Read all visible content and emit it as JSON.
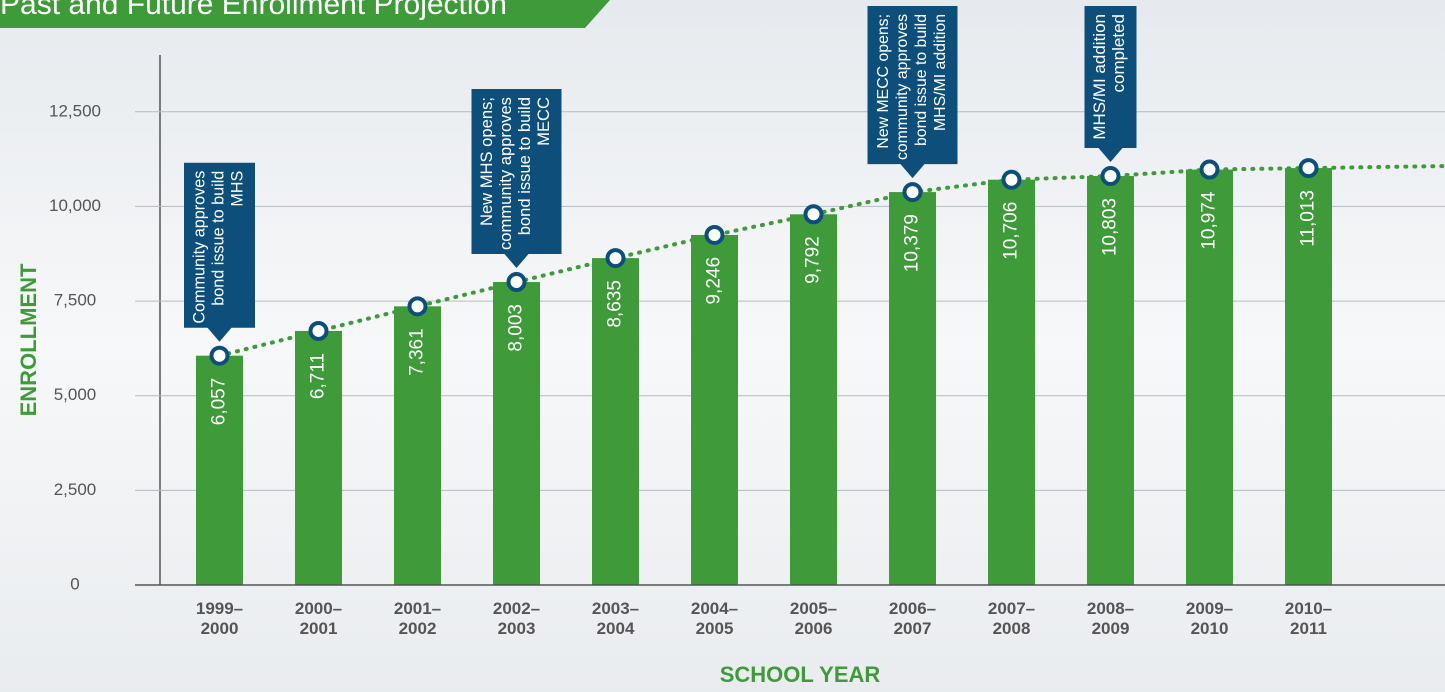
{
  "chart_data": {
    "type": "bar",
    "title": "Past and Future Enrollment Projection",
    "x_label": "SCHOOL YEAR",
    "y_label": "ENROLLMENT",
    "categories": [
      "1999–2000",
      "2000–2001",
      "2001–2002",
      "2002–2003",
      "2003–2004",
      "2004–2005",
      "2005–2006",
      "2006–2007",
      "2007–2008",
      "2008–2009",
      "2009–2010",
      "2010–2011"
    ],
    "values": [
      6057,
      6711,
      7361,
      8003,
      8635,
      9246,
      9792,
      10379,
      10706,
      10803,
      10974,
      11013
    ],
    "value_labels": [
      "6,057",
      "6,711",
      "7,361",
      "8,003",
      "8,635",
      "9,246",
      "9,792",
      "10,379",
      "10,706",
      "10,803",
      "10,974",
      "11,013"
    ],
    "color": "#3f9a3a",
    "ylim": [
      0,
      14000
    ],
    "yticks": [
      0,
      {
        "value": 2500,
        "label": "2,500"
      },
      {
        "value": 5000,
        "label": "5,000"
      },
      {
        "value": 7500,
        "label": "7,500"
      },
      {
        "value": 10000,
        "label": "10,000"
      },
      {
        "value": 12500,
        "label": "12,500"
      }
    ],
    "grid": true,
    "annotations": [
      {
        "category": "1999–2000",
        "text": "Community approves bond issue to build MHS"
      },
      {
        "category": "2002–2003",
        "text": "New MHS opens; community approves bond issue to build MECC"
      },
      {
        "category": "2006–2007",
        "text": "New MECC opens; community approves bond issue to build MHS/MI addition"
      },
      {
        "category": "2008–2009",
        "text": "MHS/MI addition completed"
      }
    ]
  }
}
